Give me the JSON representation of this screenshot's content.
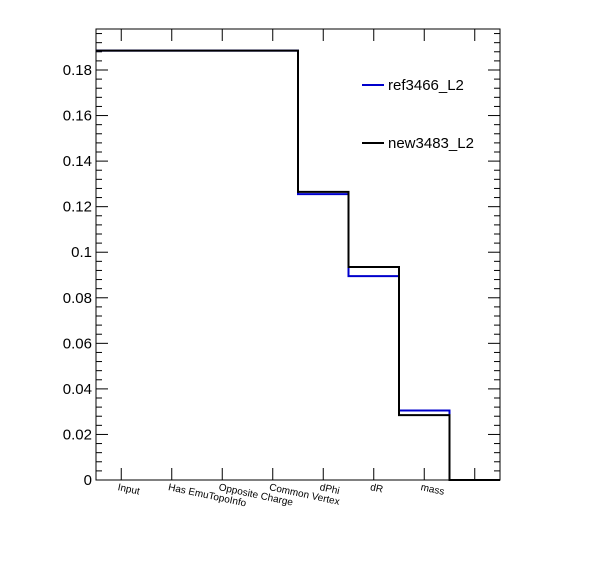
{
  "chart_data": {
    "type": "line",
    "title": "",
    "xlabel": "",
    "ylabel": "",
    "step": true,
    "categories": [
      "Input",
      "Has EmuTopoInfo",
      "Opposite Charge",
      "Common Vertex",
      "dPhi",
      "dR",
      "mass",
      ""
    ],
    "ylim": [
      0,
      0.198
    ],
    "yticks": [
      0,
      0.02,
      0.04,
      0.06,
      0.08,
      0.1,
      0.12,
      0.14,
      0.16,
      0.18
    ],
    "ytick_labels": [
      "0",
      "0.02",
      "0.04",
      "0.06",
      "0.08",
      "0.1",
      "0.12",
      "0.14",
      "0.16",
      "0.18"
    ],
    "series": [
      {
        "name": "ref3466_L2",
        "color": "#0000cc",
        "values": [
          0.1885,
          0.1885,
          0.1885,
          0.1885,
          0.1255,
          0.0895,
          0.0305,
          0
        ]
      },
      {
        "name": "new3483_L2",
        "color": "#000000",
        "values": [
          0.1885,
          0.1885,
          0.1885,
          0.1885,
          0.1265,
          0.0935,
          0.0285,
          0
        ]
      }
    ],
    "legend": {
      "placement": "top-right"
    },
    "grid": false
  }
}
